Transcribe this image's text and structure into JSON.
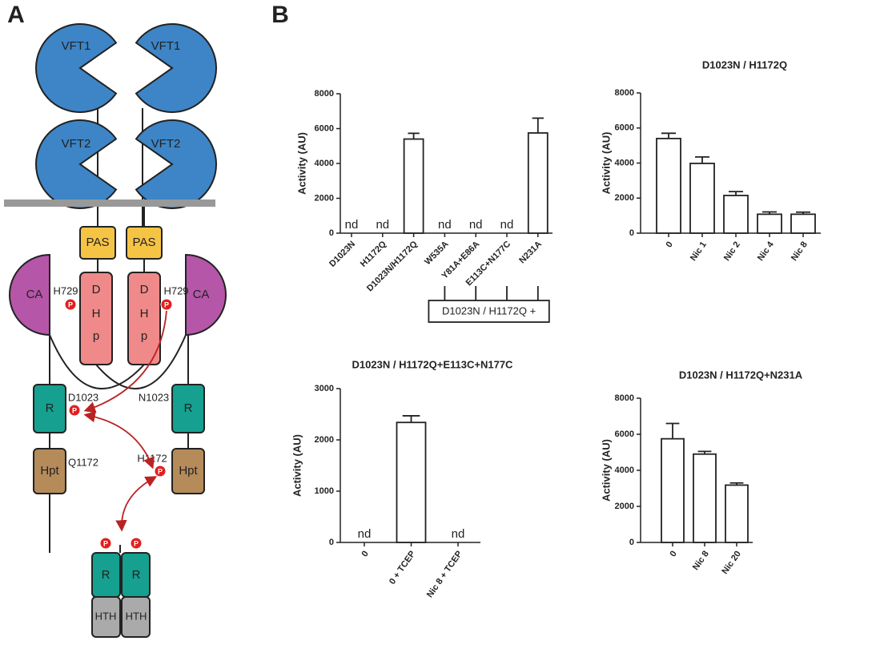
{
  "diagram": {
    "panel_label": "A",
    "vft1": "VFT1",
    "vft2": "VFT2",
    "pas": "PAS",
    "dhp": [
      "D",
      "H",
      "p"
    ],
    "ca": "CA",
    "h729": "H729",
    "d1023": "D1023",
    "n1023": "N1023",
    "r": "R",
    "hpt": "Hpt",
    "q1172": "Q1172",
    "h1172": "H1172",
    "hth": "HTH",
    "phospho": "P"
  },
  "panel_b_label": "B",
  "chart_data": [
    {
      "type": "bar",
      "y_label": "Activity (AU)",
      "categories": [
        "D1023N",
        "H1172Q",
        "D1023N/H1172Q",
        "W535A",
        "Y81A+E86A",
        "E113C+N177C",
        "N231A"
      ],
      "values": [
        null,
        null,
        5400,
        null,
        null,
        null,
        5750
      ],
      "errors": [
        null,
        null,
        330,
        null,
        null,
        null,
        850
      ],
      "value_labels": [
        "nd",
        "nd",
        null,
        "nd",
        "nd",
        "nd",
        null
      ],
      "color": "#ffffff",
      "ylim": [
        0,
        8000
      ],
      "yticks": [
        0,
        2000,
        4000,
        6000,
        8000
      ],
      "annotation": "D1023N / H1172Q +"
    },
    {
      "type": "bar",
      "title": "D1023N / H1172Q",
      "y_label": "Activity (AU)",
      "categories": [
        "0",
        "Nic 1",
        "Nic 2",
        "Nic 4",
        "Nic 8"
      ],
      "values": [
        5400,
        3980,
        2150,
        1080,
        1080
      ],
      "errors": [
        300,
        370,
        220,
        130,
        120
      ],
      "color": "#ffffff",
      "ylim": [
        0,
        8000
      ],
      "yticks": [
        0,
        2000,
        4000,
        6000,
        8000
      ]
    },
    {
      "type": "bar",
      "title": "D1023N / H1172Q+E113C+N177C",
      "y_label": "Activity (AU)",
      "categories": [
        "0",
        "0 + TCEP",
        "Nic 8 + TCEP"
      ],
      "values": [
        null,
        2340,
        null
      ],
      "errors": [
        null,
        130,
        null
      ],
      "value_labels": [
        "nd",
        null,
        "nd"
      ],
      "color": "#ffffff",
      "ylim": [
        0,
        3000
      ],
      "yticks": [
        0,
        1000,
        2000,
        3000
      ]
    },
    {
      "type": "bar",
      "title": "D1023N / H1172Q+N231A",
      "y_label": "Activity (AU)",
      "categories": [
        "0",
        "Nic 8",
        "Nic 20"
      ],
      "values": [
        5750,
        4900,
        3180
      ],
      "errors": [
        850,
        150,
        120
      ],
      "color": "#ffffff",
      "ylim": [
        0,
        8000
      ],
      "yticks": [
        0,
        2000,
        4000,
        6000,
        8000
      ]
    }
  ]
}
